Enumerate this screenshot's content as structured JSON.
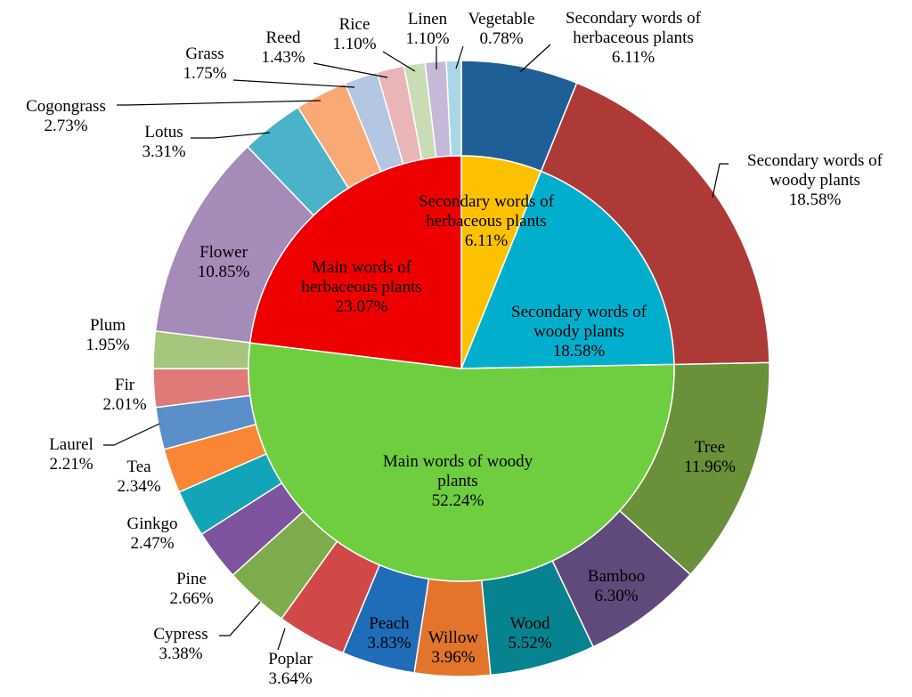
{
  "chart_data": {
    "type": "pie",
    "title": "",
    "inner": [
      {
        "label": "Secondary words of herbaceous plants",
        "value": 6.11,
        "display": "6.11%",
        "color": "#fdc100"
      },
      {
        "label": "Secondary words of woody plants",
        "value": 18.58,
        "display": "18.58%",
        "color": "#01afcc"
      },
      {
        "label": "Main words of woody plants",
        "value": 52.24,
        "display": "52.24%",
        "color": "#6ece3f"
      },
      {
        "label": "Main words of herbaceous plants",
        "value": 23.07,
        "display": "23.07%",
        "color": "#ee0000"
      }
    ],
    "outer": [
      {
        "label": "Secondary words of herbaceous plants",
        "value": 6.11,
        "display": "6.11%",
        "color": "#1f5f97"
      },
      {
        "label": "Secondary words of woody plants",
        "value": 18.58,
        "display": "18.58%",
        "color": "#ad3a37"
      },
      {
        "label": "Tree",
        "value": 11.96,
        "display": "11.96%",
        "color": "#6a9039"
      },
      {
        "label": "Bamboo",
        "value": 6.3,
        "display": "6.30%",
        "color": "#604a7b"
      },
      {
        "label": "Wood",
        "value": 5.52,
        "display": "5.52%",
        "color": "#06838f"
      },
      {
        "label": "Willow",
        "value": 3.96,
        "display": "3.96%",
        "color": "#e2752b"
      },
      {
        "label": "Peach",
        "value": 3.83,
        "display": "3.83%",
        "color": "#1f6db8"
      },
      {
        "label": "Poplar",
        "value": 3.64,
        "display": "3.64%",
        "color": "#d04848"
      },
      {
        "label": "Cypress",
        "value": 3.38,
        "display": "3.38%",
        "color": "#7eac4c"
      },
      {
        "label": "Pine",
        "value": 2.66,
        "display": "2.66%",
        "color": "#7f549e"
      },
      {
        "label": "Ginkgo",
        "value": 2.47,
        "display": "2.47%",
        "color": "#13a5b7"
      },
      {
        "label": "Tea",
        "value": 2.34,
        "display": "2.34%",
        "color": "#f98635"
      },
      {
        "label": "Laurel",
        "value": 2.21,
        "display": "2.21%",
        "color": "#5b8fc9"
      },
      {
        "label": "Fir",
        "value": 2.01,
        "display": "2.01%",
        "color": "#e07a78"
      },
      {
        "label": "Plum",
        "value": 1.95,
        "display": "1.95%",
        "color": "#a6c57d"
      },
      {
        "label": "Flower",
        "value": 10.85,
        "display": "10.85%",
        "color": "#a48bb8"
      },
      {
        "label": "Lotus",
        "value": 3.31,
        "display": "3.31%",
        "color": "#4bb3c9"
      },
      {
        "label": "Cogongrass",
        "value": 2.73,
        "display": "2.73%",
        "color": "#f9a974"
      },
      {
        "label": "Grass",
        "value": 1.75,
        "display": "1.75%",
        "color": "#b4c6e1"
      },
      {
        "label": "Reed",
        "value": 1.43,
        "display": "1.43%",
        "color": "#e9b6b8"
      },
      {
        "label": "Rice",
        "value": 1.1,
        "display": "1.10%",
        "color": "#cadcb6"
      },
      {
        "label": "Linen",
        "value": 1.1,
        "display": "1.10%",
        "color": "#c6b9d8"
      },
      {
        "label": "Vegetable",
        "value": 0.78,
        "display": "0.78%",
        "color": "#a9d7e5"
      }
    ],
    "legend": "none"
  }
}
